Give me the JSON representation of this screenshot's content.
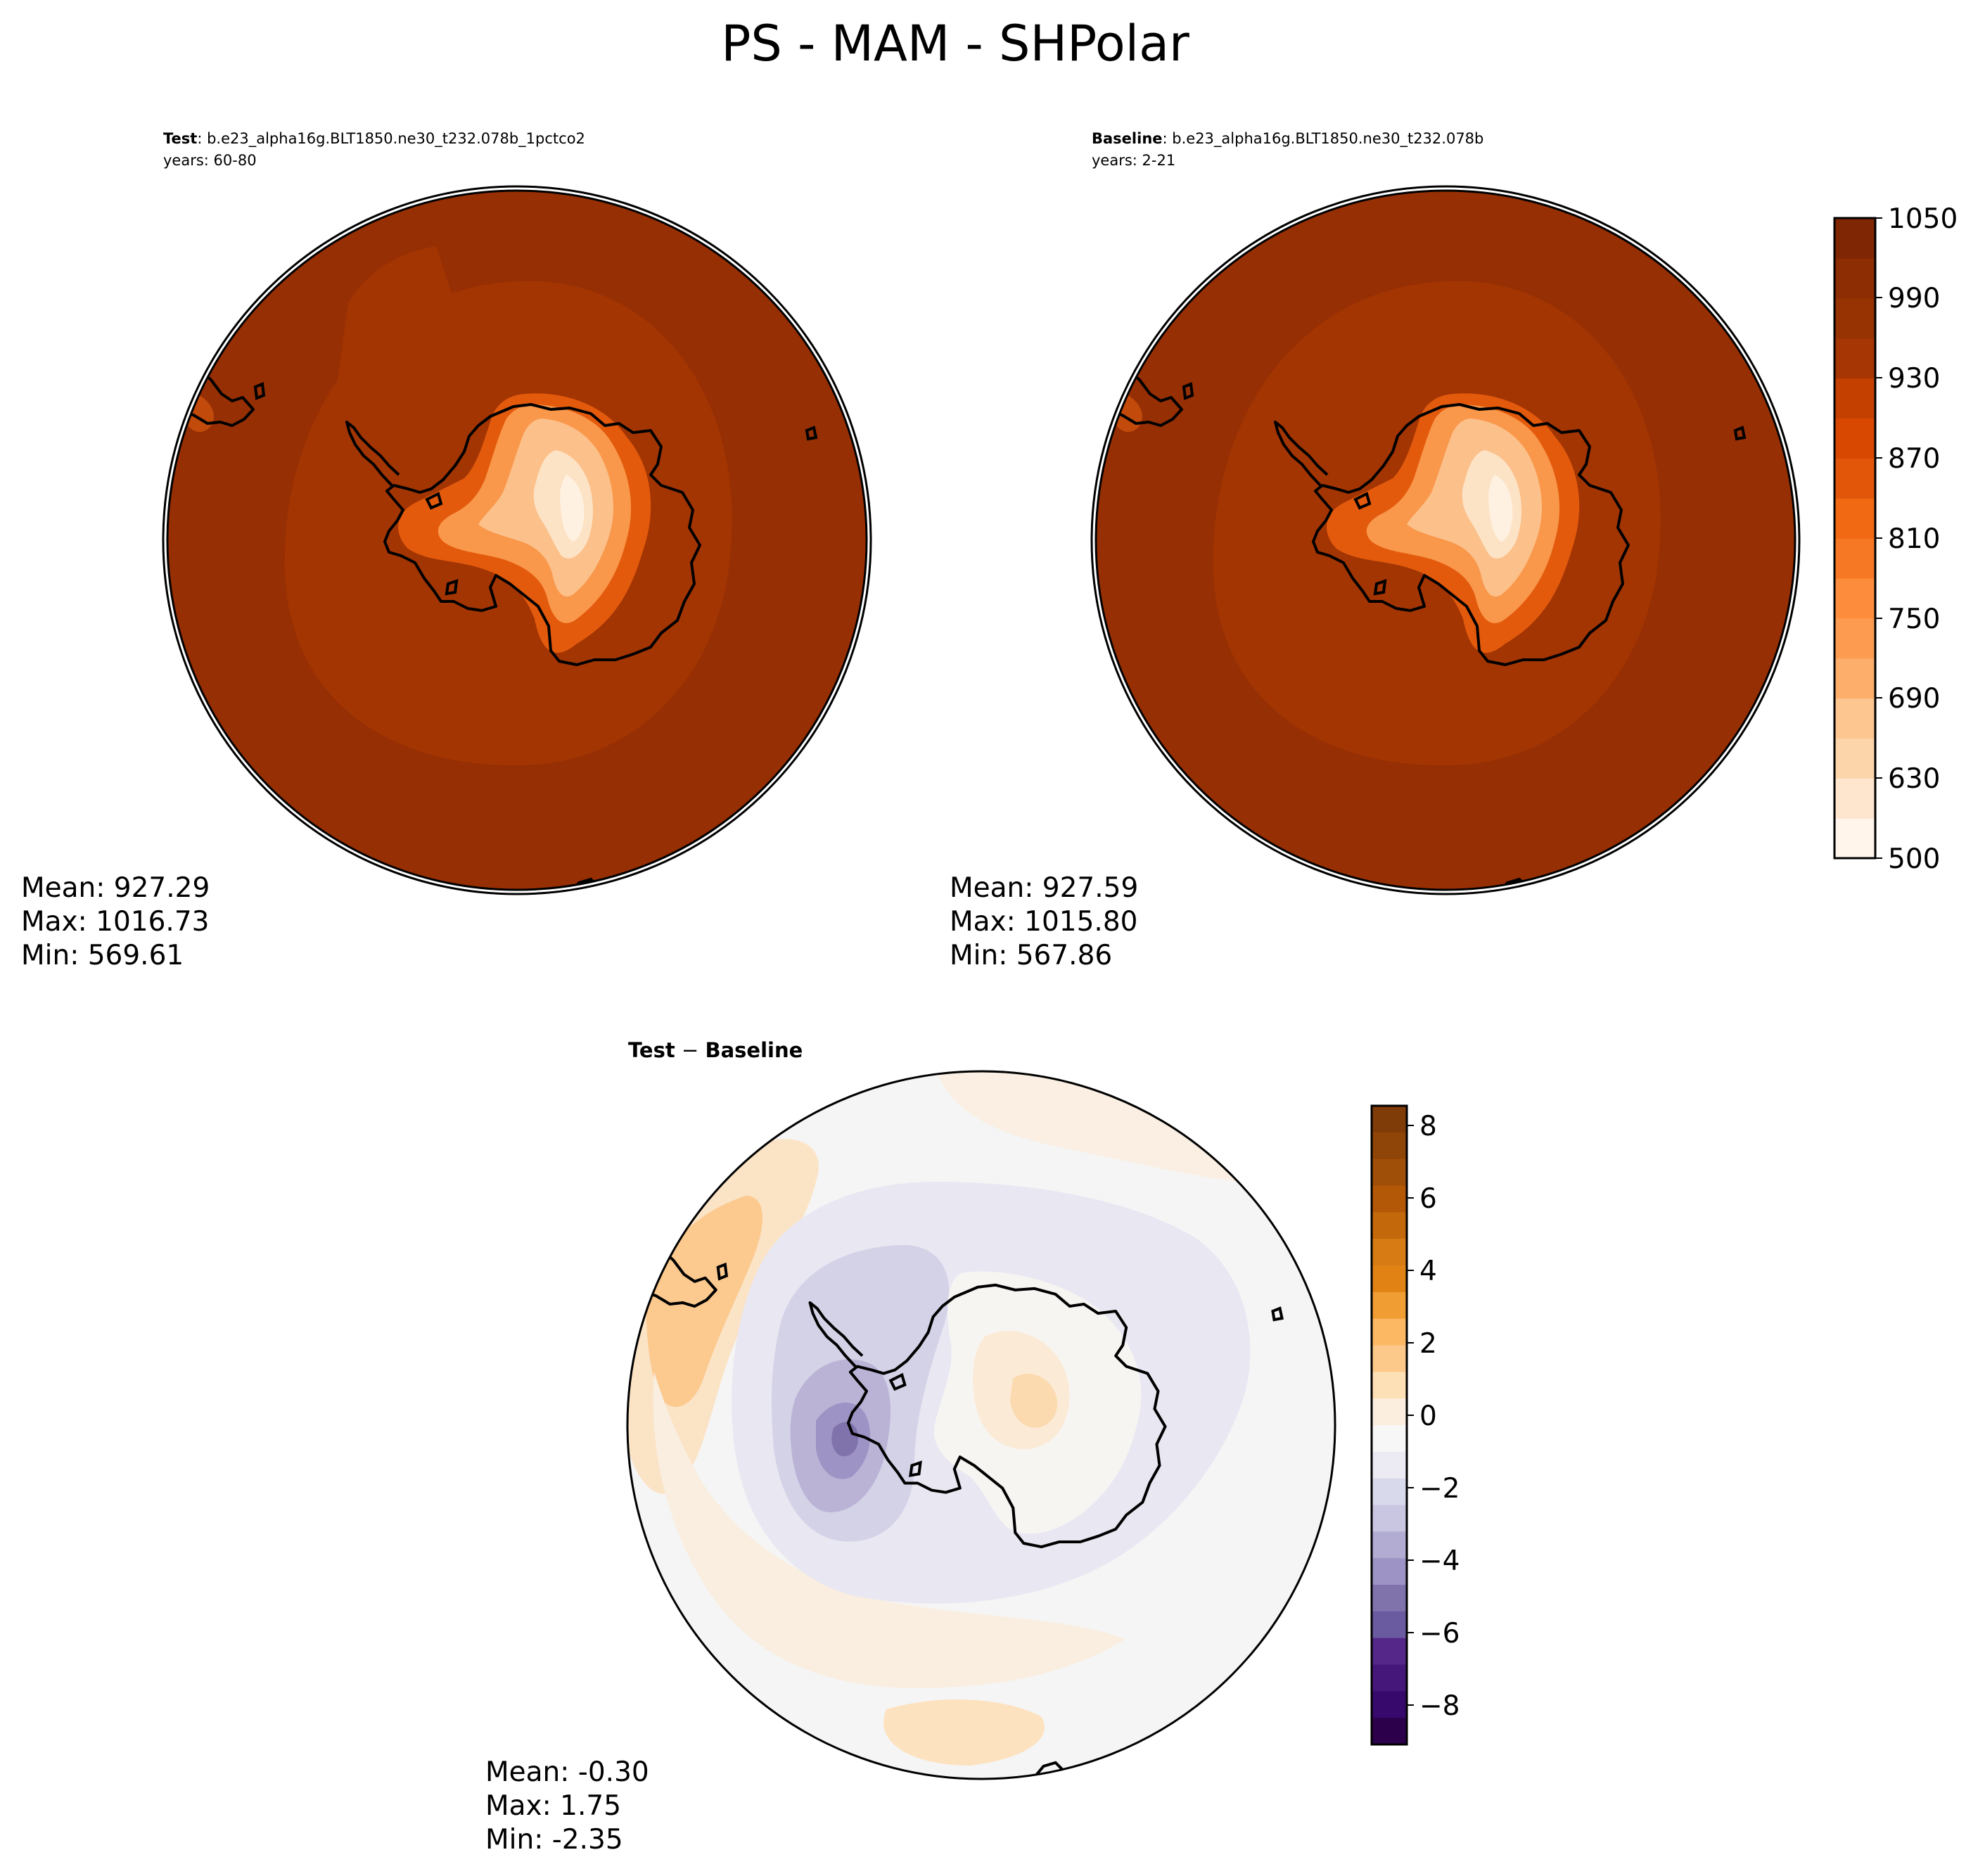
{
  "title": "PS - MAM - SHPolar",
  "panels": {
    "test": {
      "label": "Test",
      "case": ": b.e23_alpha16g.BLT1850.ne30_t232.078b_1pctco2",
      "years": "years: 60-80",
      "stats": {
        "mean": "Mean: 927.29",
        "max": "Max: 1016.73",
        "min": "Min: 569.61"
      }
    },
    "baseline": {
      "label": "Baseline",
      "case": ": b.e23_alpha16g.BLT1850.ne30_t232.078b",
      "years": "years: 2-21",
      "stats": {
        "mean": "Mean: 927.59",
        "max": "Max: 1015.80",
        "min": "Min: 567.86"
      }
    },
    "diff": {
      "label_a": "Test",
      "label_op": " − ",
      "label_b": "Baseline",
      "stats": {
        "mean": "Mean: -0.30",
        "max": "Max:  1.75",
        "min": "Min: -2.35"
      }
    }
  },
  "colorbars": {
    "field": {
      "ticks": [
        "1050",
        "990",
        "930",
        "870",
        "810",
        "750",
        "690",
        "630",
        "500"
      ],
      "levels": [
        500,
        600,
        630,
        660,
        690,
        720,
        750,
        780,
        810,
        840,
        870,
        900,
        930,
        960,
        990,
        1020,
        1050
      ],
      "colors": [
        "#fff5eb",
        "#fee6ce",
        "#fdd5ab",
        "#fdc590",
        "#fdae6b",
        "#fd9c51",
        "#fd8d3c",
        "#f67824",
        "#f16913",
        "#e25609",
        "#d94801",
        "#c34001",
        "#a63603",
        "#973203",
        "#8c2d04",
        "#7f2704"
      ]
    },
    "diff": {
      "ticks": [
        "8",
        "6",
        "4",
        "2",
        "0",
        "−2",
        "−4",
        "−6",
        "−8"
      ],
      "colors_top_to_bottom": [
        "#7f3b08",
        "#8f4508",
        "#a04f08",
        "#b35806",
        "#c4680c",
        "#d77b14",
        "#e08214",
        "#f09d34",
        "#fdb863",
        "#fdc98a",
        "#fee0b6",
        "#fbeede",
        "#f7f7f7",
        "#eceaf2",
        "#d8daeb",
        "#c8c6e1",
        "#b2abd2",
        "#9d93c4",
        "#8073ac",
        "#6a5aa0",
        "#542788",
        "#46177a",
        "#38096c",
        "#2d004b"
      ]
    }
  }
}
